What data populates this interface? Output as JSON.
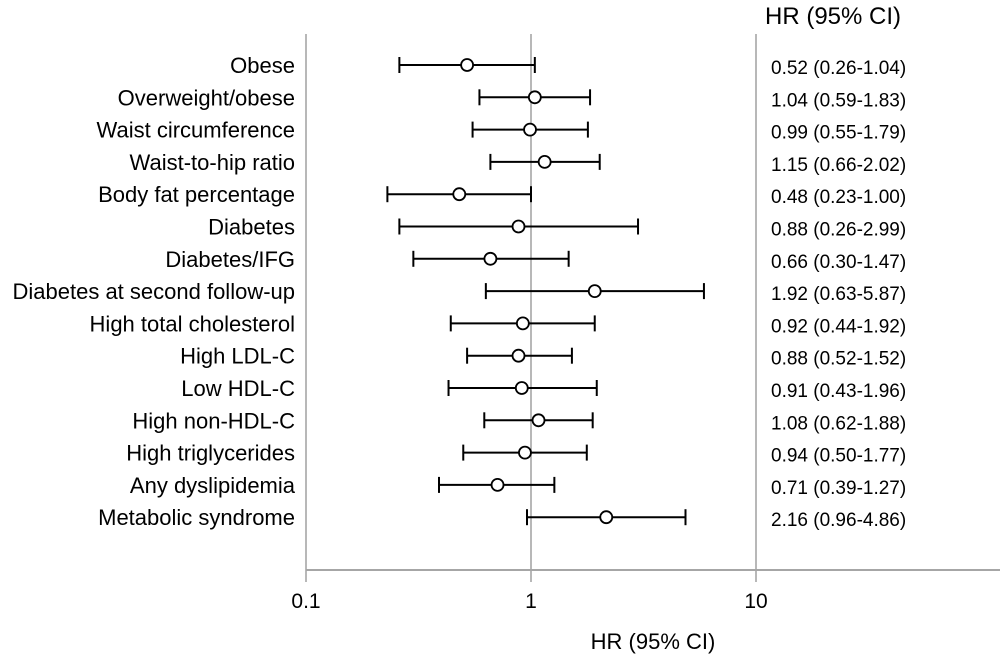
{
  "chart_data": {
    "type": "forest",
    "column_header": "HR (95% CI)",
    "xlabel": "HR (95% CI)",
    "x_scale": "log",
    "x_ticks": [
      0.1,
      1,
      10
    ],
    "x_tick_labels": [
      "0.1",
      "1",
      "10"
    ],
    "xlim": [
      0.1,
      120
    ],
    "reference_line": 1,
    "grid": "vertical-lines-at-ticks",
    "legend": "none",
    "rows": [
      {
        "label": "Obese",
        "hr": 0.52,
        "ci_low": 0.26,
        "ci_high": 1.04,
        "display": "0.52 (0.26-1.04)"
      },
      {
        "label": "Overweight/obese",
        "hr": 1.04,
        "ci_low": 0.59,
        "ci_high": 1.83,
        "display": "1.04 (0.59-1.83)"
      },
      {
        "label": "Waist circumference",
        "hr": 0.99,
        "ci_low": 0.55,
        "ci_high": 1.79,
        "display": "0.99 (0.55-1.79)"
      },
      {
        "label": "Waist-to-hip ratio",
        "hr": 1.15,
        "ci_low": 0.66,
        "ci_high": 2.02,
        "display": "1.15 (0.66-2.02)"
      },
      {
        "label": "Body fat percentage",
        "hr": 0.48,
        "ci_low": 0.23,
        "ci_high": 1.0,
        "display": "0.48 (0.23-1.00)"
      },
      {
        "label": "Diabetes",
        "hr": 0.88,
        "ci_low": 0.26,
        "ci_high": 2.99,
        "display": "0.88 (0.26-2.99)"
      },
      {
        "label": "Diabetes/IFG",
        "hr": 0.66,
        "ci_low": 0.3,
        "ci_high": 1.47,
        "display": "0.66 (0.30-1.47)"
      },
      {
        "label": "Diabetes at second follow-up",
        "hr": 1.92,
        "ci_low": 0.63,
        "ci_high": 5.87,
        "display": "1.92 (0.63-5.87)"
      },
      {
        "label": "High total cholesterol",
        "hr": 0.92,
        "ci_low": 0.44,
        "ci_high": 1.92,
        "display": "0.92 (0.44-1.92)"
      },
      {
        "label": "High LDL-C",
        "hr": 0.88,
        "ci_low": 0.52,
        "ci_high": 1.52,
        "display": "0.88 (0.52-1.52)"
      },
      {
        "label": "Low HDL-C",
        "hr": 0.91,
        "ci_low": 0.43,
        "ci_high": 1.96,
        "display": "0.91 (0.43-1.96)"
      },
      {
        "label": "High non-HDL-C",
        "hr": 1.08,
        "ci_low": 0.62,
        "ci_high": 1.88,
        "display": "1.08 (0.62-1.88)"
      },
      {
        "label": "High triglycerides",
        "hr": 0.94,
        "ci_low": 0.5,
        "ci_high": 1.77,
        "display": "0.94 (0.50-1.77)"
      },
      {
        "label": "Any dyslipidemia",
        "hr": 0.71,
        "ci_low": 0.39,
        "ci_high": 1.27,
        "display": "0.71 (0.39-1.27)"
      },
      {
        "label": "Metabolic syndrome",
        "hr": 2.16,
        "ci_low": 0.96,
        "ci_high": 4.86,
        "display": "2.16 (0.96-4.86)"
      }
    ],
    "colors": {
      "data": "#000000",
      "grid": "#a6a6a6",
      "text": "#000000",
      "marker_fill": "#ffffff",
      "background": "#ffffff"
    }
  }
}
